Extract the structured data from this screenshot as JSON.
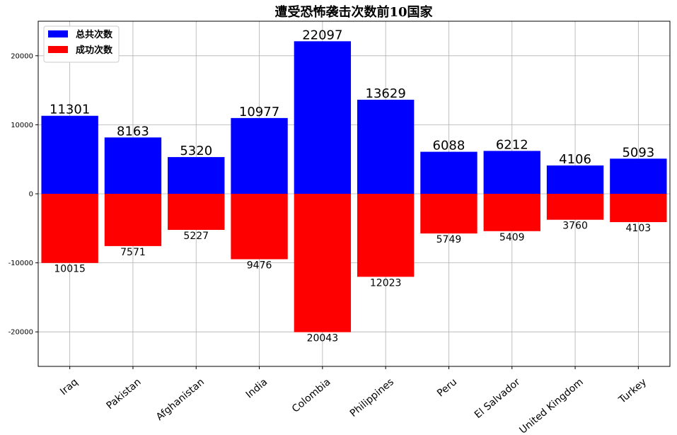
{
  "chart_data": {
    "type": "bar",
    "title": "遭受恐怖袭击次数前10国家",
    "xlabel": "",
    "ylabel": "",
    "ylim": [
      -25000,
      25000
    ],
    "yticks": [
      -20000,
      -10000,
      0,
      10000,
      20000
    ],
    "grid": true,
    "legend_position": "top-left",
    "categories": [
      "Iraq",
      "Pakistan",
      "Afghanistan",
      "India",
      "Colombia",
      "Philippines",
      "Peru",
      "El Salvador",
      "United Kingdom",
      "Turkey"
    ],
    "series": [
      {
        "name": "总共次数",
        "color": "#0000ff",
        "values": [
          11301,
          8163,
          5320,
          10977,
          22097,
          13629,
          6088,
          6212,
          4106,
          5093
        ]
      },
      {
        "name": "成功次数",
        "color": "#ff0000",
        "plotted_negative": true,
        "values": [
          10015,
          7571,
          5227,
          9476,
          20043,
          12023,
          5749,
          5409,
          3760,
          4103
        ]
      }
    ]
  }
}
